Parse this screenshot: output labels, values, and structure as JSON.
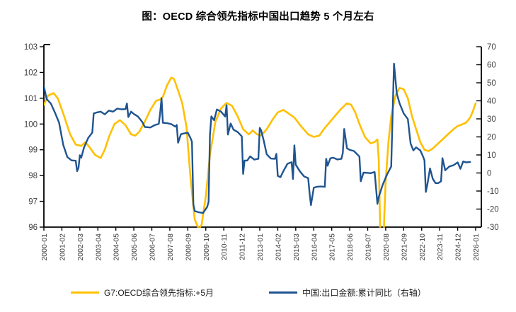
{
  "title": "图：OECD 综合领先指标中国出口趋势 5 个月左右",
  "colors": {
    "axis_line": "#000000",
    "tick_label": "#404040",
    "series_oecd": "#FFC000",
    "series_china": "#1F5490"
  },
  "legend": {
    "items": [
      {
        "label": "G7:OECD综合领先指标:+5月",
        "color": "#FFC000"
      },
      {
        "label": "中国:出口金额:累计同比（右轴）",
        "color": "#1F5490"
      }
    ]
  },
  "chart_data": {
    "type": "line",
    "title": "图：OECD 综合领先指标中国出口趋势 5 个月左右",
    "grid": false,
    "legend_position": "bottom",
    "left_axis": {
      "min": 96,
      "max": 103,
      "step": 1,
      "tick_labels": [
        "103",
        "102",
        "101",
        "100",
        "99",
        "98",
        "97",
        "96"
      ]
    },
    "right_axis": {
      "min": -30,
      "max": 70,
      "step": 10,
      "tick_labels": [
        "70",
        "60",
        "50",
        "40",
        "30",
        "20",
        "10",
        "0",
        "-10",
        "-20",
        "-30"
      ]
    },
    "x_axis": {
      "start": "2000-01",
      "end": "2026-01",
      "tick_interval_months": 13,
      "tick_labels": [
        "2000-01",
        "2001-02",
        "2002-03",
        "2003-04",
        "2004-05",
        "2005-06",
        "2006-07",
        "2007-08",
        "2008-09",
        "2009-10",
        "2010-11",
        "2011-12",
        "2013-01",
        "2014-02",
        "2015-03",
        "2016-04",
        "2017-05",
        "2018-06",
        "2019-07",
        "2020-08",
        "2021-09",
        "2022-10",
        "2023-11",
        "2024-12",
        "2026-01"
      ]
    },
    "series": [
      {
        "name": "G7:OECD综合领先指标:+5月",
        "axis": "left",
        "color": "#FFC000",
        "stroke_width": 2.6,
        "points": [
          [
            "2000-01",
            100.75
          ],
          [
            "2000-04",
            101.1
          ],
          [
            "2000-08",
            101.2
          ],
          [
            "2000-11",
            101.0
          ],
          [
            "2001-03",
            100.4
          ],
          [
            "2001-08",
            99.6
          ],
          [
            "2001-12",
            99.2
          ],
          [
            "2002-04",
            99.15
          ],
          [
            "2002-07",
            99.3
          ],
          [
            "2002-10",
            99.1
          ],
          [
            "2003-02",
            98.8
          ],
          [
            "2003-06",
            98.68
          ],
          [
            "2003-09",
            99.0
          ],
          [
            "2003-12",
            99.5
          ],
          [
            "2004-04",
            100.0
          ],
          [
            "2004-08",
            100.15
          ],
          [
            "2004-12",
            99.95
          ],
          [
            "2005-04",
            99.6
          ],
          [
            "2005-07",
            99.55
          ],
          [
            "2005-10",
            99.7
          ],
          [
            "2006-02",
            100.1
          ],
          [
            "2006-06",
            100.55
          ],
          [
            "2006-10",
            100.9
          ],
          [
            "2007-01",
            100.95
          ],
          [
            "2007-03",
            101.05
          ],
          [
            "2007-06",
            101.5
          ],
          [
            "2007-09",
            101.8
          ],
          [
            "2007-11",
            101.75
          ],
          [
            "2008-02",
            101.3
          ],
          [
            "2008-05",
            100.8
          ],
          [
            "2008-08",
            99.9
          ],
          [
            "2008-11",
            97.9
          ],
          [
            "2009-02",
            96.3
          ],
          [
            "2009-05",
            95.92
          ],
          [
            "2009-07",
            96.1
          ],
          [
            "2009-10",
            97.2
          ],
          [
            "2010-01",
            98.8
          ],
          [
            "2010-05",
            100.1
          ],
          [
            "2010-09",
            100.6
          ],
          [
            "2011-01",
            100.82
          ],
          [
            "2011-05",
            100.7
          ],
          [
            "2011-09",
            100.3
          ],
          [
            "2012-01",
            99.8
          ],
          [
            "2012-05",
            99.6
          ],
          [
            "2012-08",
            99.75
          ],
          [
            "2012-11",
            99.6
          ],
          [
            "2013-02",
            99.55
          ],
          [
            "2013-06",
            99.8
          ],
          [
            "2013-10",
            100.15
          ],
          [
            "2014-02",
            100.45
          ],
          [
            "2014-06",
            100.55
          ],
          [
            "2014-10",
            100.4
          ],
          [
            "2015-02",
            100.25
          ],
          [
            "2015-07",
            99.9
          ],
          [
            "2015-12",
            99.6
          ],
          [
            "2016-04",
            99.5
          ],
          [
            "2016-08",
            99.55
          ],
          [
            "2016-12",
            99.85
          ],
          [
            "2017-04",
            100.1
          ],
          [
            "2017-08",
            100.35
          ],
          [
            "2017-12",
            100.6
          ],
          [
            "2018-04",
            100.8
          ],
          [
            "2018-07",
            100.75
          ],
          [
            "2018-10",
            100.45
          ],
          [
            "2019-01",
            100.0
          ],
          [
            "2019-05",
            99.5
          ],
          [
            "2019-09",
            99.25
          ],
          [
            "2019-12",
            99.3
          ],
          [
            "2020-02",
            99.4
          ],
          [
            "2020-03",
            98.6
          ],
          [
            "2020-04",
            96.0
          ],
          [
            "2020-05",
            94.3
          ],
          [
            "2020-06",
            94.6
          ],
          [
            "2020-07",
            96.5
          ],
          [
            "2020-08",
            97.8
          ],
          [
            "2020-10",
            99.3
          ],
          [
            "2020-12",
            100.3
          ],
          [
            "2021-03",
            101.1
          ],
          [
            "2021-06",
            101.4
          ],
          [
            "2021-09",
            101.35
          ],
          [
            "2021-12",
            101.0
          ],
          [
            "2022-03",
            100.3
          ],
          [
            "2022-06",
            99.8
          ],
          [
            "2022-09",
            99.3
          ],
          [
            "2022-12",
            99.0
          ],
          [
            "2023-03",
            98.95
          ],
          [
            "2023-06",
            99.05
          ],
          [
            "2023-09",
            99.2
          ],
          [
            "2023-12",
            99.35
          ],
          [
            "2024-03",
            99.5
          ],
          [
            "2024-06",
            99.65
          ],
          [
            "2024-09",
            99.8
          ],
          [
            "2024-12",
            99.92
          ],
          [
            "2025-03",
            99.98
          ],
          [
            "2025-06",
            100.05
          ],
          [
            "2025-09",
            100.25
          ],
          [
            "2025-11",
            100.5
          ],
          [
            "2026-01",
            100.8
          ]
        ]
      },
      {
        "name": "中国:出口金额:累计同比（右轴）",
        "axis": "right",
        "color": "#1F5490",
        "stroke_width": 2.4,
        "points": [
          [
            "2000-01",
            48
          ],
          [
            "2000-03",
            41
          ],
          [
            "2000-06",
            38.5
          ],
          [
            "2000-09",
            33.5
          ],
          [
            "2000-12",
            27.8
          ],
          [
            "2001-03",
            15.5
          ],
          [
            "2001-06",
            8.8
          ],
          [
            "2001-09",
            7.0
          ],
          [
            "2001-12",
            6.8
          ],
          [
            "2002-01",
            1.0
          ],
          [
            "2002-02",
            2.8
          ],
          [
            "2002-03",
            9.8
          ],
          [
            "2002-04",
            8.5
          ],
          [
            "2002-06",
            14.1
          ],
          [
            "2002-09",
            19.4
          ],
          [
            "2002-12",
            22.4
          ],
          [
            "2003-01",
            33.0
          ],
          [
            "2003-03",
            33.5
          ],
          [
            "2003-06",
            34.0
          ],
          [
            "2003-09",
            32.5
          ],
          [
            "2003-12",
            34.6
          ],
          [
            "2004-03",
            34.0
          ],
          [
            "2004-06",
            35.7
          ],
          [
            "2004-09",
            35.3
          ],
          [
            "2004-12",
            35.4
          ],
          [
            "2005-01",
            38.5
          ],
          [
            "2005-02",
            31.0
          ],
          [
            "2005-04",
            34.0
          ],
          [
            "2005-06",
            32.7
          ],
          [
            "2005-09",
            31.3
          ],
          [
            "2005-12",
            28.4
          ],
          [
            "2006-02",
            25.5
          ],
          [
            "2006-06",
            25.2
          ],
          [
            "2006-09",
            26.5
          ],
          [
            "2006-12",
            27.2
          ],
          [
            "2007-01",
            33.0
          ],
          [
            "2007-02",
            41.5
          ],
          [
            "2007-03",
            27.8
          ],
          [
            "2007-06",
            27.6
          ],
          [
            "2007-09",
            27.1
          ],
          [
            "2007-12",
            25.7
          ],
          [
            "2008-01",
            26.6
          ],
          [
            "2008-02",
            16.8
          ],
          [
            "2008-04",
            21.5
          ],
          [
            "2008-06",
            21.9
          ],
          [
            "2008-09",
            22.3
          ],
          [
            "2008-11",
            19.3
          ],
          [
            "2008-12",
            17.3
          ],
          [
            "2009-01",
            -17.5
          ],
          [
            "2009-02",
            -21.1
          ],
          [
            "2009-05",
            -21.8
          ],
          [
            "2009-08",
            -22.2
          ],
          [
            "2009-11",
            -18.8
          ],
          [
            "2009-12",
            -16.0
          ],
          [
            "2010-01",
            21.0
          ],
          [
            "2010-02",
            31.4
          ],
          [
            "2010-04",
            29.2
          ],
          [
            "2010-06",
            35.2
          ],
          [
            "2010-09",
            34.0
          ],
          [
            "2010-12",
            31.3
          ],
          [
            "2011-01",
            37.6
          ],
          [
            "2011-02",
            21.3
          ],
          [
            "2011-04",
            27.4
          ],
          [
            "2011-06",
            24.0
          ],
          [
            "2011-09",
            22.7
          ],
          [
            "2011-12",
            20.3
          ],
          [
            "2012-01",
            -0.5
          ],
          [
            "2012-02",
            6.9
          ],
          [
            "2012-04",
            6.9
          ],
          [
            "2012-06",
            9.2
          ],
          [
            "2012-09",
            7.4
          ],
          [
            "2012-12",
            7.9
          ],
          [
            "2013-01",
            25.0
          ],
          [
            "2013-02",
            23.6
          ],
          [
            "2013-04",
            17.4
          ],
          [
            "2013-06",
            10.4
          ],
          [
            "2013-09",
            8.0
          ],
          [
            "2013-12",
            7.8
          ],
          [
            "2014-01",
            10.6
          ],
          [
            "2014-02",
            -1.6
          ],
          [
            "2014-04",
            -2.3
          ],
          [
            "2014-06",
            0.9
          ],
          [
            "2014-09",
            5.1
          ],
          [
            "2014-12",
            6.0
          ],
          [
            "2015-01",
            -3.3
          ],
          [
            "2015-02",
            15.3
          ],
          [
            "2015-03",
            4.6
          ],
          [
            "2015-06",
            0.9
          ],
          [
            "2015-09",
            -1.9
          ],
          [
            "2015-12",
            -2.9
          ],
          [
            "2016-01",
            -11.2
          ],
          [
            "2016-02",
            -17.8
          ],
          [
            "2016-04",
            -8.2
          ],
          [
            "2016-06",
            -7.7
          ],
          [
            "2016-09",
            -7.5
          ],
          [
            "2016-12",
            -7.7
          ],
          [
            "2017-01",
            7.9
          ],
          [
            "2017-02",
            4.0
          ],
          [
            "2017-04",
            8.1
          ],
          [
            "2017-06",
            8.5
          ],
          [
            "2017-09",
            7.5
          ],
          [
            "2017-12",
            7.9
          ],
          [
            "2018-01",
            11.1
          ],
          [
            "2018-02",
            24.4
          ],
          [
            "2018-04",
            13.7
          ],
          [
            "2018-06",
            12.8
          ],
          [
            "2018-09",
            12.2
          ],
          [
            "2018-12",
            9.9
          ],
          [
            "2019-01",
            9.1
          ],
          [
            "2019-02",
            -4.6
          ],
          [
            "2019-04",
            0.2
          ],
          [
            "2019-06",
            0.1
          ],
          [
            "2019-09",
            -0.1
          ],
          [
            "2019-12",
            0.5
          ],
          [
            "2020-02",
            -17.1
          ],
          [
            "2020-03",
            -13.3
          ],
          [
            "2020-06",
            -6.2
          ],
          [
            "2020-09",
            -0.8
          ],
          [
            "2020-12",
            3.6
          ],
          [
            "2021-02",
            60.6
          ],
          [
            "2021-04",
            44.0
          ],
          [
            "2021-06",
            38.6
          ],
          [
            "2021-09",
            33.0
          ],
          [
            "2021-12",
            29.9
          ],
          [
            "2022-02",
            16.3
          ],
          [
            "2022-04",
            12.5
          ],
          [
            "2022-06",
            14.2
          ],
          [
            "2022-09",
            12.5
          ],
          [
            "2022-11",
            9.1
          ],
          [
            "2022-12",
            7.0
          ],
          [
            "2023-01",
            -10.5
          ],
          [
            "2023-02",
            -6.8
          ],
          [
            "2023-04",
            2.5
          ],
          [
            "2023-06",
            -3.2
          ],
          [
            "2023-08",
            -5.6
          ],
          [
            "2023-10",
            -5.6
          ],
          [
            "2023-12",
            -4.6
          ],
          [
            "2024-01",
            8.2
          ],
          [
            "2024-03",
            1.5
          ],
          [
            "2024-06",
            3.6
          ],
          [
            "2024-09",
            4.3
          ],
          [
            "2024-12",
            5.9
          ],
          [
            "2025-02",
            2.3
          ],
          [
            "2025-04",
            6.4
          ],
          [
            "2025-06",
            5.9
          ],
          [
            "2025-09",
            6.1
          ]
        ]
      }
    ]
  }
}
